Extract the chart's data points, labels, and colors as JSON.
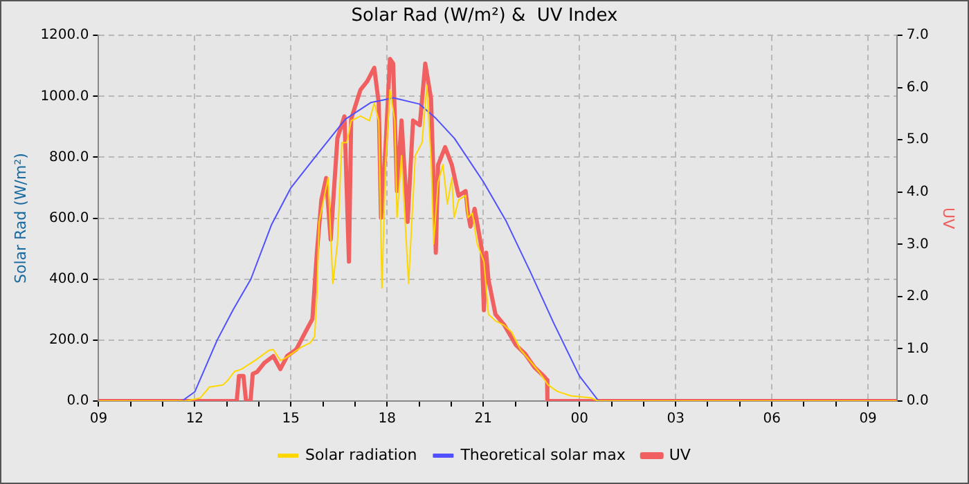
{
  "chart_data": {
    "type": "line",
    "title": "Solar Rad (W/m²) &  UV Index",
    "ylabel": "Solar Rad (W/m²)",
    "y2label": "UV",
    "xlim": [
      9,
      33.9
    ],
    "xticks": [
      {
        "value": 9,
        "label": "09"
      },
      {
        "value": 10,
        "label": null
      },
      {
        "value": 11,
        "label": null
      },
      {
        "value": 12,
        "label": "12"
      },
      {
        "value": 13,
        "label": null
      },
      {
        "value": 14,
        "label": null
      },
      {
        "value": 15,
        "label": "15"
      },
      {
        "value": 16,
        "label": null
      },
      {
        "value": 17,
        "label": null
      },
      {
        "value": 18,
        "label": "18"
      },
      {
        "value": 19,
        "label": null
      },
      {
        "value": 20,
        "label": null
      },
      {
        "value": 21,
        "label": "21"
      },
      {
        "value": 22,
        "label": null
      },
      {
        "value": 23,
        "label": null
      },
      {
        "value": 24,
        "label": "00"
      },
      {
        "value": 25,
        "label": null
      },
      {
        "value": 26,
        "label": null
      },
      {
        "value": 27,
        "label": "03"
      },
      {
        "value": 28,
        "label": null
      },
      {
        "value": 29,
        "label": null
      },
      {
        "value": 30,
        "label": "06"
      },
      {
        "value": 31,
        "label": null
      },
      {
        "value": 32,
        "label": null
      },
      {
        "value": 33,
        "label": "09"
      }
    ],
    "ylim": [
      0,
      1200
    ],
    "yticks": [
      {
        "value": 0,
        "label": "0.0"
      },
      {
        "value": 200,
        "label": "200.0"
      },
      {
        "value": 400,
        "label": "400.0"
      },
      {
        "value": 600,
        "label": "600.0"
      },
      {
        "value": 800,
        "label": "800.0"
      },
      {
        "value": 1000,
        "label": "1000.0"
      },
      {
        "value": 1200,
        "label": "1200.0"
      }
    ],
    "y2lim": [
      0,
      7
    ],
    "y2ticks": [
      {
        "value": 0,
        "label": "0.0"
      },
      {
        "value": 1,
        "label": "1.0"
      },
      {
        "value": 2,
        "label": "2.0"
      },
      {
        "value": 3,
        "label": "3.0"
      },
      {
        "value": 4,
        "label": "4.0"
      },
      {
        "value": 5,
        "label": "5.0"
      },
      {
        "value": 6,
        "label": "6.0"
      },
      {
        "value": 7,
        "label": "7.0"
      }
    ],
    "grid": true,
    "legend": "bottom",
    "marker": "none",
    "series": [
      {
        "name": "Solar radiation",
        "color": "#ffd700",
        "x": [
          9,
          11.74,
          12.17,
          12.46,
          12.88,
          13.03,
          13.24,
          13.45,
          13.88,
          14.31,
          14.45,
          14.67,
          14.81,
          15.03,
          15.31,
          15.6,
          15.74,
          15.81,
          15.88,
          16.02,
          16.16,
          16.31,
          16.45,
          16.59,
          16.74,
          16.88,
          17.17,
          17.45,
          17.6,
          17.74,
          17.84,
          17.95,
          18.09,
          18.24,
          18.31,
          18.45,
          18.67,
          18.88,
          19.09,
          19.24,
          19.38,
          19.45,
          19.59,
          19.74,
          19.88,
          20.02,
          20.09,
          20.23,
          20.45,
          20.52,
          20.66,
          20.81,
          21.02,
          21.16,
          21.38,
          21.66,
          21.88,
          22.16,
          22.45,
          22.73,
          23.02,
          23.3,
          23.73,
          24.37,
          24.59,
          33.9
        ],
        "values": [
          0,
          0,
          10,
          46,
          53,
          68,
          97,
          104,
          133,
          166,
          169,
          133,
          140,
          155,
          176,
          191,
          212,
          342,
          588,
          660,
          732,
          386,
          516,
          848,
          848,
          920,
          935,
          920,
          978,
          920,
          371,
          776,
          1021,
          920,
          602,
          805,
          386,
          805,
          848,
          1036,
          776,
          516,
          718,
          776,
          646,
          732,
          602,
          660,
          675,
          602,
          617,
          516,
          458,
          285,
          263,
          248,
          227,
          169,
          133,
          97,
          53,
          32,
          17,
          10,
          0,
          0
        ]
      },
      {
        "name": "Theoretical solar max",
        "color": "#5050ff",
        "x": [
          9,
          11.6,
          12.0,
          12.7,
          13.2,
          13.75,
          14.4,
          15.0,
          15.9,
          16.7,
          17.5,
          18.2,
          19.0,
          19.5,
          20.1,
          21.0,
          21.7,
          22.45,
          23.2,
          24.0,
          24.6,
          33.9
        ],
        "values": [
          0,
          0,
          30,
          200,
          300,
          400,
          580,
          700,
          820,
          925,
          980,
          995,
          975,
          930,
          862,
          720,
          593,
          428,
          255,
          82,
          0,
          0
        ]
      },
      {
        "name": "UV",
        "color": "#f06060",
        "axis": "y2",
        "x": [
          9,
          13.31,
          13.38,
          13.52,
          13.6,
          13.74,
          13.81,
          13.95,
          14.17,
          14.45,
          14.67,
          14.88,
          15.17,
          15.45,
          15.67,
          15.81,
          15.95,
          16.1,
          16.24,
          16.45,
          16.67,
          16.81,
          16.88,
          17.17,
          17.38,
          17.6,
          17.74,
          17.81,
          17.95,
          18.09,
          18.19,
          18.31,
          18.45,
          18.64,
          18.81,
          19.02,
          19.19,
          19.37,
          19.52,
          19.59,
          19.81,
          20.02,
          20.23,
          20.45,
          20.52,
          20.6,
          20.73,
          20.95,
          21.02,
          21.09,
          21.16,
          21.38,
          21.66,
          22.02,
          22.31,
          22.59,
          22.88,
          22.99,
          23.0,
          33.9
        ],
        "values": [
          0,
          0,
          0.48,
          0.48,
          0,
          0,
          0.52,
          0.56,
          0.73,
          0.86,
          0.61,
          0.86,
          0.99,
          1.32,
          1.57,
          2.84,
          3.85,
          4.27,
          3.09,
          5.03,
          5.45,
          2.67,
          5.4,
          5.96,
          6.12,
          6.38,
          5.7,
          3.51,
          4.86,
          6.55,
          6.46,
          4.02,
          5.37,
          3.43,
          5.37,
          5.28,
          6.46,
          5.79,
          2.84,
          4.52,
          4.86,
          4.52,
          3.93,
          4.02,
          3.6,
          3.34,
          3.68,
          2.92,
          1.74,
          2.84,
          2.33,
          1.66,
          1.45,
          1.07,
          0.9,
          0.65,
          0.48,
          0.4,
          0,
          0
        ]
      }
    ]
  }
}
